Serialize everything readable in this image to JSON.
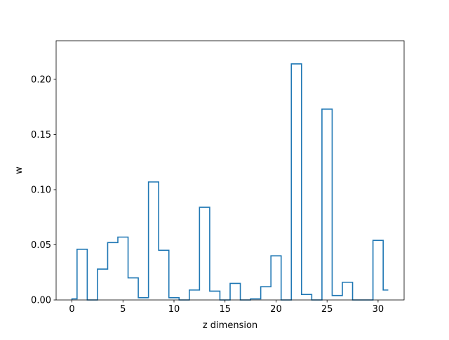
{
  "chart_data": {
    "type": "line",
    "step": "post",
    "title": "",
    "xlabel": "z dimension",
    "ylabel": "w",
    "xlim": [
      -1.55,
      32.55
    ],
    "ylim": [
      0,
      0.235
    ],
    "xticks": [
      0,
      5,
      10,
      15,
      20,
      25,
      30
    ],
    "xtick_labels": [
      "0",
      "5",
      "10",
      "15",
      "20",
      "25",
      "30"
    ],
    "yticks": [
      0.0,
      0.05,
      0.1,
      0.15,
      0.2
    ],
    "ytick_labels": [
      "0.00",
      "0.05",
      "0.10",
      "0.15",
      "0.20"
    ],
    "grid": false,
    "series": [
      {
        "color": "#1f77b4",
        "x": [
          0,
          1,
          2,
          3,
          4,
          5,
          6,
          7,
          8,
          9,
          10,
          11,
          12,
          13,
          14,
          15,
          16,
          17,
          18,
          19,
          20,
          21,
          22,
          23,
          24,
          25,
          26,
          27,
          28,
          29,
          30,
          31
        ],
        "values": [
          0.001,
          0.046,
          0.0,
          0.028,
          0.052,
          0.057,
          0.02,
          0.002,
          0.107,
          0.045,
          0.002,
          0.0,
          0.009,
          0.084,
          0.008,
          0.0,
          0.015,
          0.0,
          0.001,
          0.012,
          0.04,
          0.0,
          0.214,
          0.005,
          0.0,
          0.173,
          0.004,
          0.016,
          0.0,
          0.0,
          0.054,
          0.009
        ]
      }
    ]
  }
}
